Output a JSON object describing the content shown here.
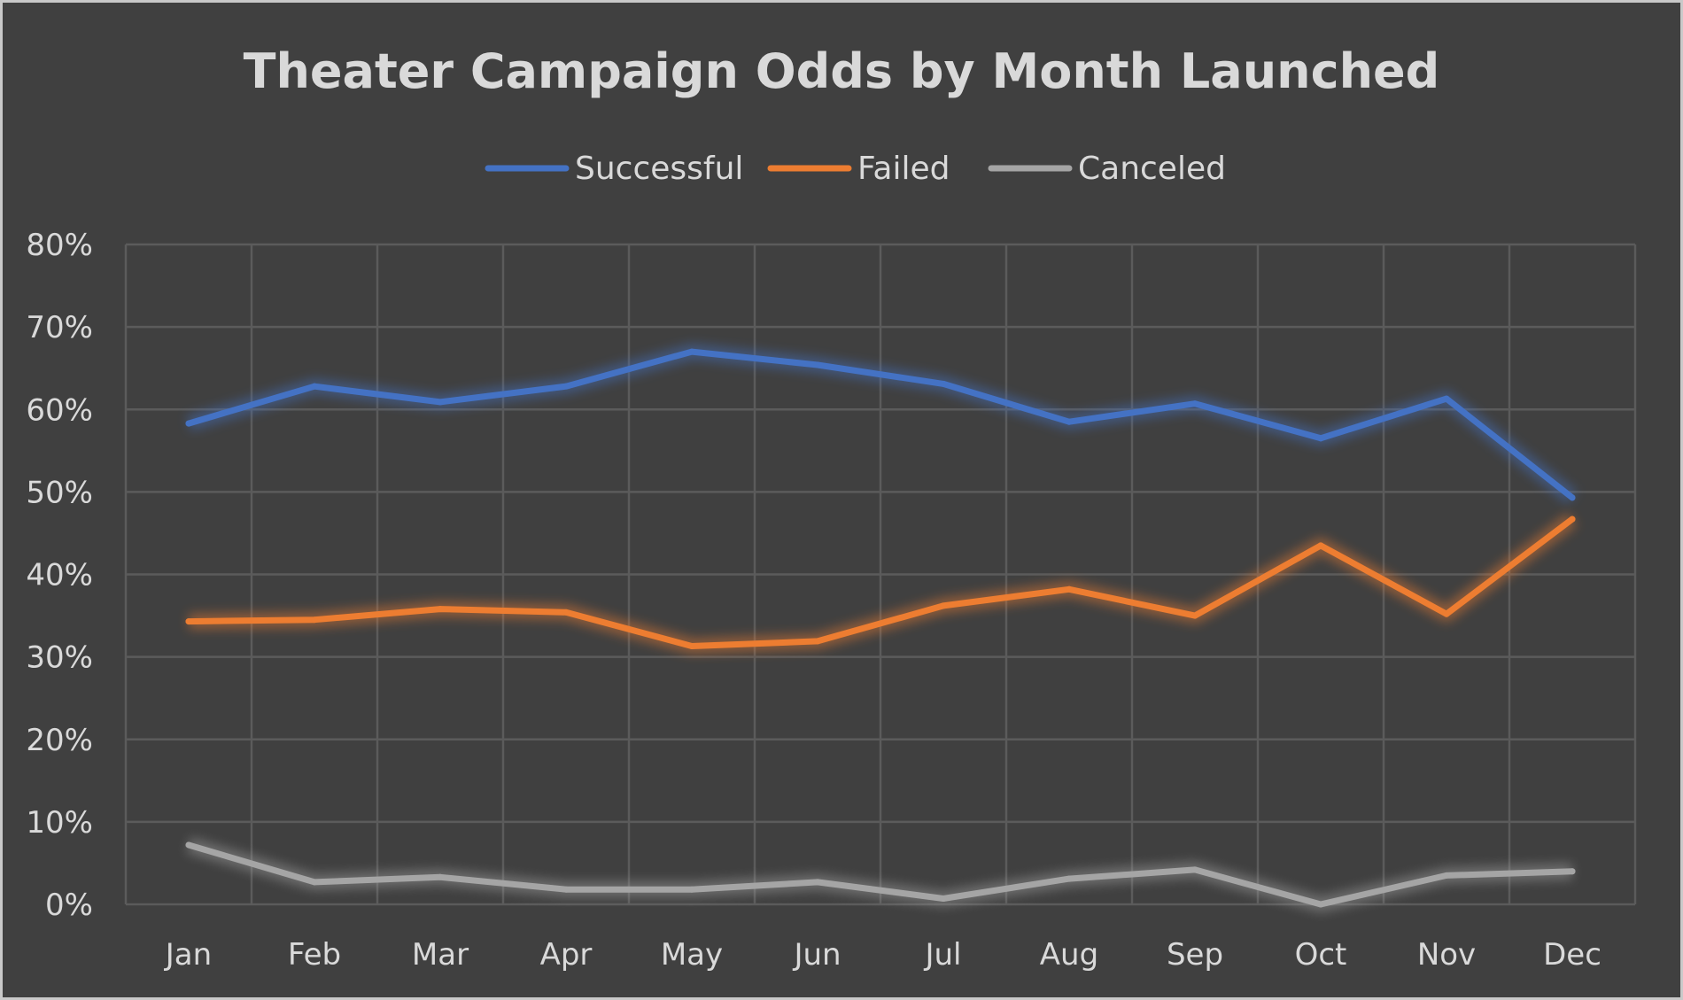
{
  "chart_data": {
    "type": "line",
    "title": "Theater Campaign Odds by Month Launched",
    "xlabel": "",
    "ylabel": "",
    "categories": [
      "Jan",
      "Feb",
      "Mar",
      "Apr",
      "May",
      "Jun",
      "Jul",
      "Aug",
      "Sep",
      "Oct",
      "Nov",
      "Dec"
    ],
    "ylim": [
      0,
      0.8
    ],
    "yticks": [
      "0%",
      "10%",
      "20%",
      "30%",
      "40%",
      "50%",
      "60%",
      "70%",
      "80%"
    ],
    "grid": true,
    "legend_position": "top",
    "series": [
      {
        "name": "Successful",
        "color": "#4472c4",
        "values": [
          0.583,
          0.628,
          0.609,
          0.628,
          0.67,
          0.654,
          0.631,
          0.585,
          0.607,
          0.565,
          0.613,
          0.493
        ]
      },
      {
        "name": "Failed",
        "color": "#ed7d31",
        "values": [
          0.343,
          0.345,
          0.358,
          0.354,
          0.313,
          0.319,
          0.362,
          0.382,
          0.35,
          0.435,
          0.352,
          0.467
        ]
      },
      {
        "name": "Canceled",
        "color": "#a5a5a5",
        "values": [
          0.072,
          0.027,
          0.033,
          0.018,
          0.018,
          0.027,
          0.007,
          0.031,
          0.042,
          0.0,
          0.035,
          0.04
        ]
      }
    ]
  }
}
